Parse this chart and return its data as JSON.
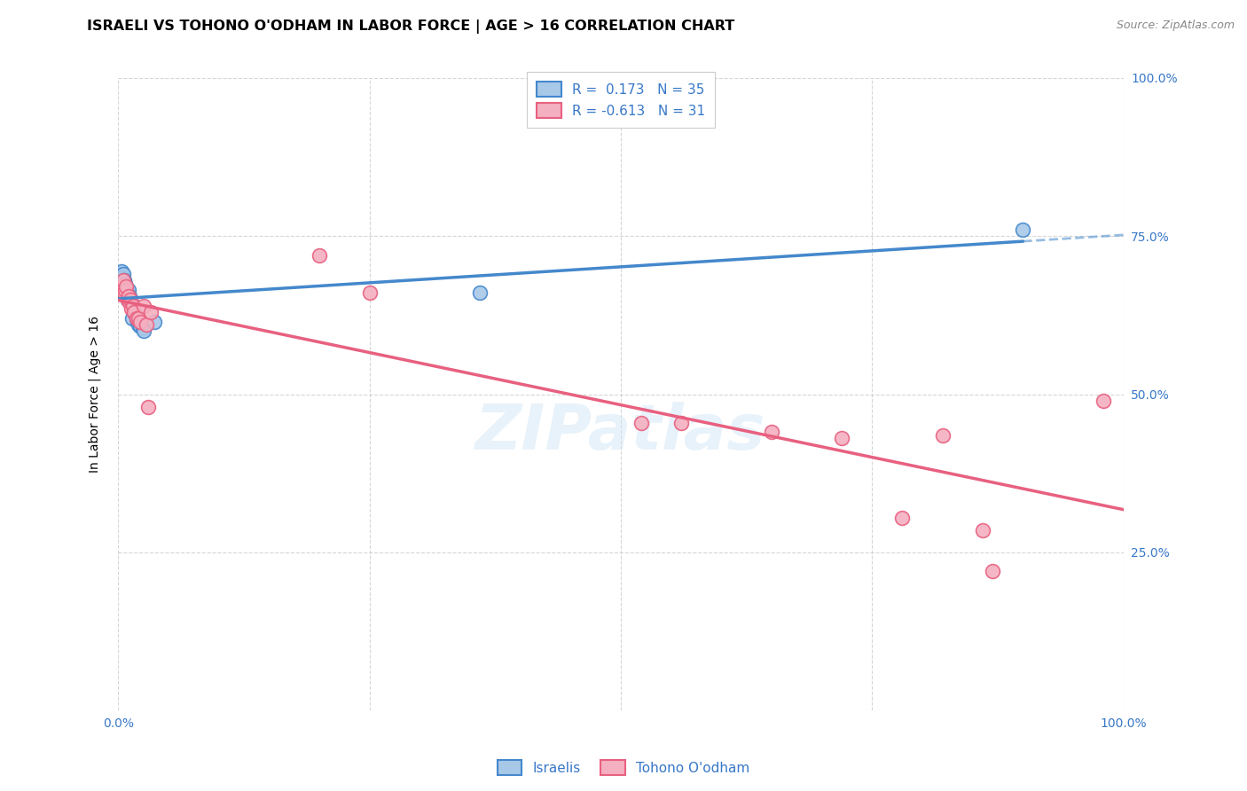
{
  "title": "ISRAELI VS TOHONO O'ODHAM IN LABOR FORCE | AGE > 16 CORRELATION CHART",
  "source": "Source: ZipAtlas.com",
  "ylabel": "In Labor Force | Age > 16",
  "watermark": "ZIPatlas",
  "xlim": [
    0.0,
    1.0
  ],
  "ylim": [
    0.0,
    1.0
  ],
  "israelis_x": [
    0.002,
    0.003,
    0.003,
    0.004,
    0.004,
    0.005,
    0.005,
    0.005,
    0.006,
    0.006,
    0.006,
    0.007,
    0.007,
    0.007,
    0.008,
    0.008,
    0.009,
    0.009,
    0.01,
    0.01,
    0.011,
    0.012,
    0.013,
    0.014,
    0.016,
    0.017,
    0.018,
    0.019,
    0.02,
    0.022,
    0.024,
    0.025,
    0.036,
    0.36,
    0.9
  ],
  "israelis_y": [
    0.69,
    0.695,
    0.68,
    0.685,
    0.67,
    0.675,
    0.68,
    0.69,
    0.665,
    0.67,
    0.68,
    0.66,
    0.67,
    0.675,
    0.655,
    0.665,
    0.65,
    0.66,
    0.655,
    0.665,
    0.655,
    0.648,
    0.645,
    0.62,
    0.63,
    0.625,
    0.62,
    0.615,
    0.61,
    0.608,
    0.605,
    0.6,
    0.615,
    0.66,
    0.76
  ],
  "tohono_x": [
    0.002,
    0.004,
    0.005,
    0.006,
    0.007,
    0.008,
    0.009,
    0.01,
    0.011,
    0.012,
    0.013,
    0.015,
    0.016,
    0.018,
    0.02,
    0.022,
    0.025,
    0.028,
    0.03,
    0.032,
    0.2,
    0.25,
    0.52,
    0.56,
    0.65,
    0.72,
    0.78,
    0.82,
    0.86,
    0.87,
    0.98
  ],
  "tohono_y": [
    0.67,
    0.665,
    0.68,
    0.66,
    0.665,
    0.67,
    0.65,
    0.655,
    0.645,
    0.65,
    0.635,
    0.64,
    0.63,
    0.62,
    0.62,
    0.615,
    0.64,
    0.61,
    0.48,
    0.63,
    0.72,
    0.66,
    0.455,
    0.455,
    0.44,
    0.43,
    0.305,
    0.435,
    0.285,
    0.22,
    0.49
  ],
  "israeli_color": "#a8c8e8",
  "tohono_color": "#f4b0c0",
  "israeli_line_color": "#4488cc",
  "tohono_line_color": "#e86080",
  "israeli_R": 0.173,
  "israeli_N": 35,
  "tohono_R": -0.613,
  "tohono_N": 31,
  "grid_color": "#cccccc",
  "background_color": "#ffffff",
  "title_fontsize": 11.5,
  "label_fontsize": 10,
  "tick_fontsize": 10,
  "legend_fontsize": 11,
  "source_fontsize": 9,
  "israeli_line_x": [
    0.0,
    0.5,
    1.0
  ],
  "israeli_line_y_start": 0.655,
  "israeli_line_y_mid": 0.685,
  "israeli_line_y_end": 0.715,
  "tohono_line_y_start": 0.69,
  "tohono_line_y_end": 0.39
}
